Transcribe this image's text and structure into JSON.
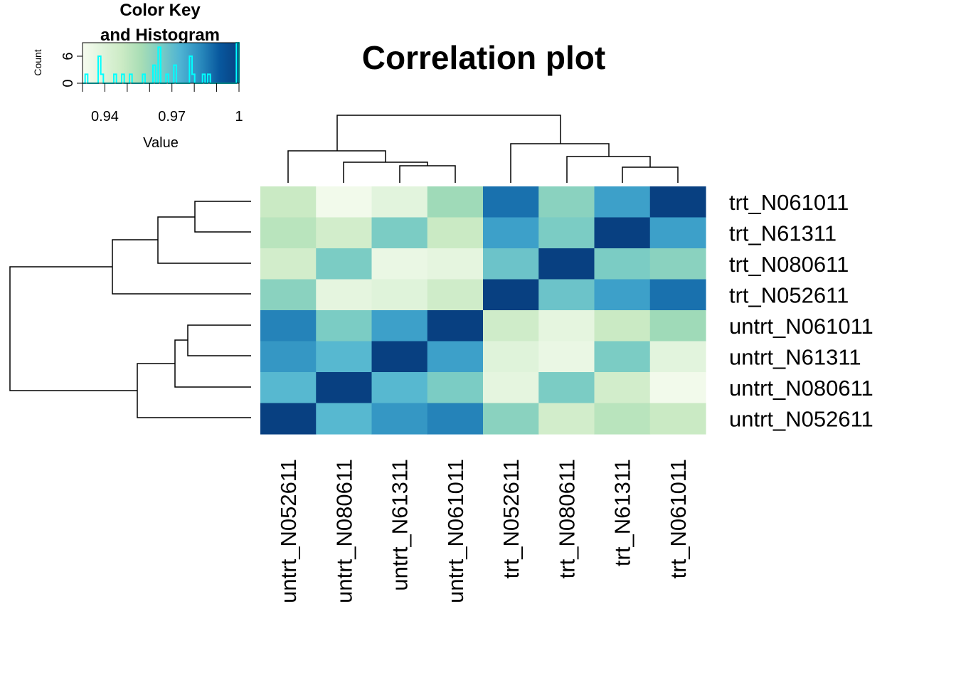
{
  "chart_data": {
    "type": "heatmap",
    "title": "Correlation plot",
    "row_labels": [
      "trt_N061011",
      "trt_N61311",
      "trt_N080611",
      "trt_N052611",
      "untrt_N061011",
      "untrt_N61311",
      "untrt_N080611",
      "untrt_N052611"
    ],
    "col_labels": [
      "untrt_N052611",
      "untrt_N080611",
      "untrt_N61311",
      "untrt_N061011",
      "trt_N052611",
      "trt_N080611",
      "trt_N61311",
      "trt_N061011"
    ],
    "values": [
      [
        0.948,
        0.932,
        0.938,
        0.958,
        0.987,
        0.962,
        0.978,
        1.0
      ],
      [
        0.952,
        0.945,
        0.965,
        0.948,
        0.978,
        0.965,
        1.0,
        0.978
      ],
      [
        0.945,
        0.965,
        0.935,
        0.937,
        0.968,
        1.0,
        0.965,
        0.962
      ],
      [
        0.962,
        0.937,
        0.939,
        0.946,
        1.0,
        0.968,
        0.978,
        0.987
      ],
      [
        0.984,
        0.965,
        0.978,
        1.0,
        0.946,
        0.937,
        0.948,
        0.958
      ],
      [
        0.98,
        0.972,
        1.0,
        0.978,
        0.939,
        0.935,
        0.965,
        0.938
      ],
      [
        0.972,
        1.0,
        0.972,
        0.965,
        0.937,
        0.965,
        0.945,
        0.932
      ],
      [
        1.0,
        0.972,
        0.98,
        0.984,
        0.962,
        0.945,
        0.952,
        0.948
      ]
    ],
    "color_min": 0.93,
    "color_max": 1.0,
    "color_scale": [
      "#f7fcf0",
      "#e0f3db",
      "#ccebc5",
      "#a8ddb5",
      "#7bccc4",
      "#4eb3d3",
      "#2b8cbe",
      "#08589e",
      "#084081"
    ],
    "key": {
      "title_line1": "Color Key",
      "title_line2": "and Histogram",
      "xlabel": "Value",
      "ylabel": "Count",
      "xticks": [
        0.94,
        0.97,
        1.0
      ],
      "xtick_labels": [
        "0.94",
        "0.97",
        "1"
      ],
      "yticks": [
        0,
        6
      ],
      "ytick_labels": [
        "0",
        "6"
      ],
      "ymax": 9,
      "hist_color": "#00ffff"
    }
  }
}
